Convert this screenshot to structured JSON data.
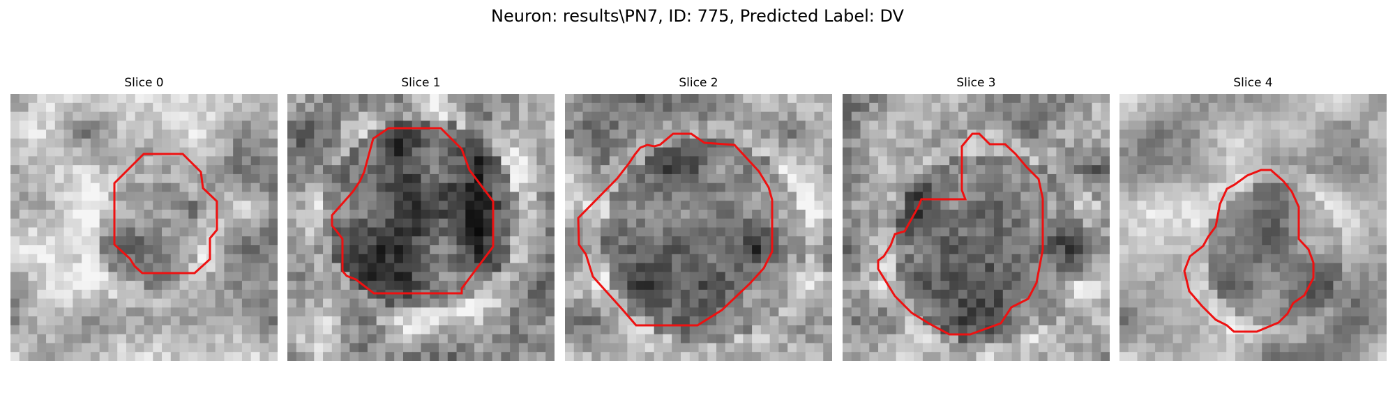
{
  "figure": {
    "title": "Neuron: results\\PN7, ID: 775, Predicted Label: DV",
    "outline_color": "#ee1111"
  },
  "panels": [
    {
      "title": "Slice 0"
    },
    {
      "title": "Slice 1"
    },
    {
      "title": "Slice 2"
    },
    {
      "title": "Slice 3"
    },
    {
      "title": "Slice 4"
    }
  ]
}
